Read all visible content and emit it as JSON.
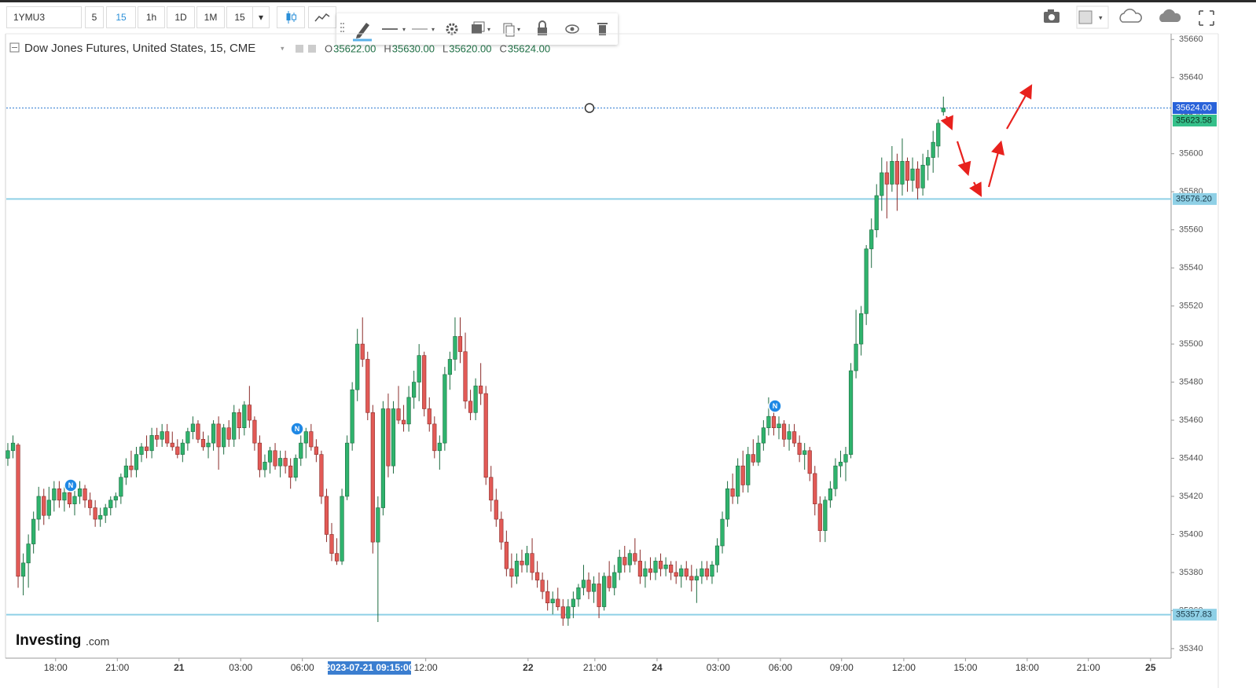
{
  "toolbar": {
    "symbol": "1YMU3",
    "intervals": [
      "5",
      "15",
      "1h",
      "1D",
      "1M"
    ],
    "active_interval": 1,
    "interval_select": "15"
  },
  "news_marker": "N",
  "logo": [
    "Investing",
    ".com"
  ],
  "chart_data": {
    "type": "candlestick",
    "title": "Dow Jones Futures, United States, 15, CME",
    "ohlc_legend": [
      {
        "key": "O",
        "text": "35622.00"
      },
      {
        "key": "H",
        "text": "35630.00"
      },
      {
        "key": "L",
        "text": "35620.00"
      },
      {
        "key": "C",
        "text": "35624.00"
      }
    ],
    "cursor_label": "2023-07-21 09:15:00",
    "up_color": "#2fb36d",
    "up_edge": "#1d6b40",
    "down_color": "#e25a56",
    "down_edge": "#8a2b29",
    "grid": false,
    "ylim": [
      35335,
      35663
    ],
    "yticks": [
      35340,
      35360,
      35380,
      35400,
      35420,
      35440,
      35460,
      35480,
      35500,
      35520,
      35540,
      35560,
      35580,
      35600,
      35620,
      35640,
      35660
    ],
    "xlim": [
      -0.3,
      226.3
    ],
    "xticks": [
      {
        "value": 9.3,
        "label": "18:00"
      },
      {
        "value": 21.3,
        "label": "21:00"
      },
      {
        "value": 33.3,
        "label": "21"
      },
      {
        "value": 45.3,
        "label": "03:00"
      },
      {
        "value": 57.3,
        "label": "06:00"
      },
      {
        "value": 81.3,
        "label": "12:00"
      },
      {
        "value": 101.2,
        "label": "22"
      },
      {
        "value": 114.2,
        "label": "21:00"
      },
      {
        "value": 126.3,
        "label": "24"
      },
      {
        "value": 138.2,
        "label": "03:00"
      },
      {
        "value": 150.3,
        "label": "06:00"
      },
      {
        "value": 162.2,
        "label": "09:00"
      },
      {
        "value": 174.3,
        "label": "12:00"
      },
      {
        "value": 186.3,
        "label": "15:00"
      },
      {
        "value": 198.3,
        "label": "18:00"
      },
      {
        "value": 210.2,
        "label": "21:00"
      },
      {
        "value": 222.3,
        "label": "25"
      }
    ],
    "bold_ticks": [
      "21",
      "22",
      "24",
      "25"
    ],
    "hlines": [
      {
        "value": 35624,
        "label": "35624.00",
        "style": "dotted",
        "color": "#4f8fd8",
        "box": "#2962d9",
        "text_color": "#ffffff"
      },
      {
        "value": 35576.2,
        "label": "35576.20",
        "style": "solid",
        "color": "#8fd0e6",
        "box": "#8fd0e6",
        "text_color": "#1b3b4a"
      },
      {
        "value": 35357.83,
        "label": "35357.83",
        "style": "solid",
        "color": "#8fd0e6",
        "box": "#8fd0e6",
        "text_color": "#1b3b4a"
      }
    ],
    "price_markers": [
      {
        "value": 35623.58,
        "label": "35623.58",
        "box": "#35c08a",
        "text_color": "#0d2f20"
      }
    ],
    "ohlc": [
      [
        35440,
        35448,
        35436,
        35444
      ],
      [
        35444,
        35452,
        35440,
        35448
      ],
      [
        35447,
        35448,
        35372,
        35378
      ],
      [
        35378,
        35390,
        35368,
        35385
      ],
      [
        35385,
        35400,
        35372,
        35395
      ],
      [
        35395,
        35412,
        35390,
        35408
      ],
      [
        35408,
        35425,
        35402,
        35420
      ],
      [
        35420,
        35424,
        35405,
        35410
      ],
      [
        35410,
        35425,
        35408,
        35418
      ],
      [
        35418,
        35428,
        35412,
        35424
      ],
      [
        35424,
        35428,
        35414,
        35418
      ],
      [
        35418,
        35426,
        35412,
        35422
      ],
      [
        35422,
        35426,
        35414,
        35416
      ],
      [
        35416,
        35424,
        35410,
        35420
      ],
      [
        35420,
        35428,
        35416,
        35424
      ],
      [
        35424,
        35426,
        35414,
        35418
      ],
      [
        35418,
        35422,
        35410,
        35414
      ],
      [
        35414,
        35418,
        35404,
        35408
      ],
      [
        35408,
        35414,
        35404,
        35410
      ],
      [
        35410,
        35416,
        35406,
        35414
      ],
      [
        35414,
        35420,
        35410,
        35418
      ],
      [
        35418,
        35422,
        35414,
        35420
      ],
      [
        35420,
        35432,
        35416,
        35430
      ],
      [
        35430,
        35440,
        35426,
        35436
      ],
      [
        35436,
        35444,
        35430,
        35434
      ],
      [
        35434,
        35446,
        35430,
        35442
      ],
      [
        35442,
        35448,
        35438,
        35446
      ],
      [
        35446,
        35452,
        35440,
        35444
      ],
      [
        35444,
        35456,
        35440,
        35452
      ],
      [
        35452,
        35456,
        35446,
        35450
      ],
      [
        35450,
        35458,
        35446,
        35454
      ],
      [
        35454,
        35458,
        35446,
        35448
      ],
      [
        35448,
        35454,
        35444,
        35446
      ],
      [
        35446,
        35450,
        35440,
        35442
      ],
      [
        35442,
        35450,
        35438,
        35448
      ],
      [
        35448,
        35456,
        35444,
        35454
      ],
      [
        35454,
        35462,
        35450,
        35458
      ],
      [
        35458,
        35460,
        35448,
        35450
      ],
      [
        35450,
        35454,
        35444,
        35446
      ],
      [
        35446,
        35452,
        35440,
        35448
      ],
      [
        35448,
        35460,
        35444,
        35458
      ],
      [
        35458,
        35462,
        35434,
        35446
      ],
      [
        35446,
        35458,
        35442,
        35456
      ],
      [
        35456,
        35460,
        35446,
        35450
      ],
      [
        35450,
        35468,
        35446,
        35464
      ],
      [
        35464,
        35466,
        35450,
        35456
      ],
      [
        35456,
        35470,
        35452,
        35468
      ],
      [
        35468,
        35478,
        35456,
        35460
      ],
      [
        35460,
        35462,
        35444,
        35448
      ],
      [
        35448,
        35452,
        35430,
        35434
      ],
      [
        35434,
        35442,
        35430,
        35438
      ],
      [
        35438,
        35446,
        35432,
        35444
      ],
      [
        35444,
        35448,
        35434,
        35436
      ],
      [
        35436,
        35444,
        35430,
        35440
      ],
      [
        35440,
        35444,
        35432,
        35436
      ],
      [
        35436,
        35440,
        35424,
        35430
      ],
      [
        35430,
        35442,
        35428,
        35440
      ],
      [
        35440,
        35452,
        35436,
        35448
      ],
      [
        35448,
        35456,
        35440,
        35454
      ],
      [
        35454,
        35458,
        35444,
        35446
      ],
      [
        35446,
        35450,
        35438,
        35442
      ],
      [
        35442,
        35444,
        35416,
        35420
      ],
      [
        35420,
        35424,
        35396,
        35400
      ],
      [
        35400,
        35406,
        35386,
        35390
      ],
      [
        35390,
        35398,
        35384,
        35386
      ],
      [
        35386,
        35424,
        35384,
        35420
      ],
      [
        35420,
        35452,
        35418,
        35448
      ],
      [
        35448,
        35480,
        35444,
        35476
      ],
      [
        35476,
        35508,
        35470,
        35500
      ],
      [
        35500,
        35514,
        35488,
        35492
      ],
      [
        35492,
        35496,
        35460,
        35464
      ],
      [
        35464,
        35468,
        35390,
        35396
      ],
      [
        35396,
        35420,
        35354,
        35414
      ],
      [
        35414,
        35470,
        35410,
        35466
      ],
      [
        35466,
        35474,
        35430,
        35436
      ],
      [
        35436,
        35470,
        35432,
        35466
      ],
      [
        35466,
        35478,
        35458,
        35460
      ],
      [
        35460,
        35468,
        35454,
        35458
      ],
      [
        35458,
        35478,
        35454,
        35472
      ],
      [
        35472,
        35486,
        35466,
        35480
      ],
      [
        35480,
        35500,
        35470,
        35494
      ],
      [
        35494,
        35496,
        35462,
        35466
      ],
      [
        35466,
        35472,
        35454,
        35458
      ],
      [
        35458,
        35462,
        35440,
        35444
      ],
      [
        35444,
        35452,
        35434,
        35448
      ],
      [
        35448,
        35488,
        35444,
        35484
      ],
      [
        35484,
        35496,
        35476,
        35492
      ],
      [
        35492,
        35514,
        35486,
        35504
      ],
      [
        35504,
        35514,
        35490,
        35496
      ],
      [
        35496,
        35506,
        35466,
        35470
      ],
      [
        35470,
        35476,
        35460,
        35464
      ],
      [
        35464,
        35482,
        35460,
        35478
      ],
      [
        35478,
        35490,
        35468,
        35474
      ],
      [
        35474,
        35478,
        35426,
        35430
      ],
      [
        35430,
        35436,
        35412,
        35418
      ],
      [
        35418,
        35424,
        35404,
        35408
      ],
      [
        35408,
        35412,
        35392,
        35396
      ],
      [
        35396,
        35402,
        35378,
        35382
      ],
      [
        35382,
        35390,
        35372,
        35378
      ],
      [
        35378,
        35390,
        35374,
        35386
      ],
      [
        35386,
        35392,
        35380,
        35384
      ],
      [
        35384,
        35394,
        35380,
        35390
      ],
      [
        35390,
        35398,
        35376,
        35380
      ],
      [
        35380,
        35386,
        35372,
        35376
      ],
      [
        35376,
        35380,
        35366,
        35370
      ],
      [
        35370,
        35376,
        35360,
        35364
      ],
      [
        35364,
        35370,
        35358,
        35366
      ],
      [
        35366,
        35372,
        35360,
        35362
      ],
      [
        35362,
        35366,
        35352,
        35356
      ],
      [
        35356,
        35366,
        35352,
        35362
      ],
      [
        35362,
        35370,
        35356,
        35366
      ],
      [
        35366,
        35374,
        35362,
        35372
      ],
      [
        35372,
        35384,
        35368,
        35376
      ],
      [
        35376,
        35380,
        35366,
        35370
      ],
      [
        35370,
        35378,
        35364,
        35374
      ],
      [
        35374,
        35380,
        35356,
        35362
      ],
      [
        35362,
        35380,
        35360,
        35378
      ],
      [
        35378,
        35386,
        35370,
        35372
      ],
      [
        35372,
        35384,
        35368,
        35380
      ],
      [
        35380,
        35392,
        35376,
        35388
      ],
      [
        35388,
        35394,
        35380,
        35384
      ],
      [
        35384,
        35392,
        35380,
        35390
      ],
      [
        35390,
        35398,
        35384,
        35386
      ],
      [
        35386,
        35392,
        35374,
        35378
      ],
      [
        35378,
        35386,
        35372,
        35382
      ],
      [
        35382,
        35388,
        35376,
        35380
      ],
      [
        35380,
        35388,
        35376,
        35386
      ],
      [
        35386,
        35390,
        35378,
        35382
      ],
      [
        35382,
        35388,
        35378,
        35384
      ],
      [
        35384,
        35386,
        35376,
        35380
      ],
      [
        35380,
        35386,
        35374,
        35378
      ],
      [
        35378,
        35384,
        35372,
        35382
      ],
      [
        35382,
        35386,
        35376,
        35378
      ],
      [
        35378,
        35384,
        35370,
        35376
      ],
      [
        35376,
        35382,
        35364,
        35378
      ],
      [
        35378,
        35386,
        35374,
        35382
      ],
      [
        35382,
        35386,
        35376,
        35378
      ],
      [
        35378,
        35386,
        35374,
        35384
      ],
      [
        35384,
        35398,
        35380,
        35394
      ],
      [
        35394,
        35412,
        35390,
        35408
      ],
      [
        35408,
        35428,
        35404,
        35424
      ],
      [
        35424,
        35432,
        35416,
        35420
      ],
      [
        35420,
        35440,
        35416,
        35436
      ],
      [
        35436,
        35444,
        35422,
        35426
      ],
      [
        35426,
        35446,
        35422,
        35442
      ],
      [
        35442,
        35450,
        35436,
        35438
      ],
      [
        35438,
        35452,
        35436,
        35448
      ],
      [
        35448,
        35460,
        35444,
        35456
      ],
      [
        35456,
        35472,
        35452,
        35462
      ],
      [
        35462,
        35466,
        35452,
        35456
      ],
      [
        35456,
        35462,
        35450,
        35458
      ],
      [
        35458,
        35460,
        35446,
        35450
      ],
      [
        35450,
        35458,
        35444,
        35454
      ],
      [
        35454,
        35458,
        35446,
        35448
      ],
      [
        35448,
        35452,
        35438,
        35442
      ],
      [
        35442,
        35448,
        35434,
        35444
      ],
      [
        35444,
        35446,
        35428,
        35432
      ],
      [
        35432,
        35436,
        35410,
        35416
      ],
      [
        35416,
        35420,
        35396,
        35402
      ],
      [
        35402,
        35420,
        35396,
        35418
      ],
      [
        35418,
        35428,
        35414,
        35424
      ],
      [
        35424,
        35440,
        35420,
        35436
      ],
      [
        35436,
        35444,
        35430,
        35438
      ],
      [
        35438,
        35446,
        35428,
        35442
      ],
      [
        35442,
        35490,
        35440,
        35486
      ],
      [
        35486,
        35518,
        35482,
        35500
      ],
      [
        35500,
        35520,
        35494,
        35516
      ],
      [
        35516,
        35552,
        35510,
        35550
      ],
      [
        35550,
        35566,
        35540,
        35560
      ],
      [
        35560,
        35584,
        35556,
        35578
      ],
      [
        35578,
        35598,
        35570,
        35590
      ],
      [
        35590,
        35596,
        35566,
        35584
      ],
      [
        35584,
        35604,
        35580,
        35596
      ],
      [
        35596,
        35600,
        35570,
        35584
      ],
      [
        35584,
        35608,
        35578,
        35596
      ],
      [
        35596,
        35598,
        35580,
        35586
      ],
      [
        35586,
        35598,
        35580,
        35592
      ],
      [
        35592,
        35596,
        35576,
        35582
      ],
      [
        35582,
        35600,
        35578,
        35594
      ],
      [
        35594,
        35602,
        35586,
        35598
      ],
      [
        35598,
        35612,
        35590,
        35606
      ],
      [
        35604,
        35618,
        35598,
        35616
      ],
      [
        35622,
        35630,
        35620,
        35624
      ]
    ]
  }
}
